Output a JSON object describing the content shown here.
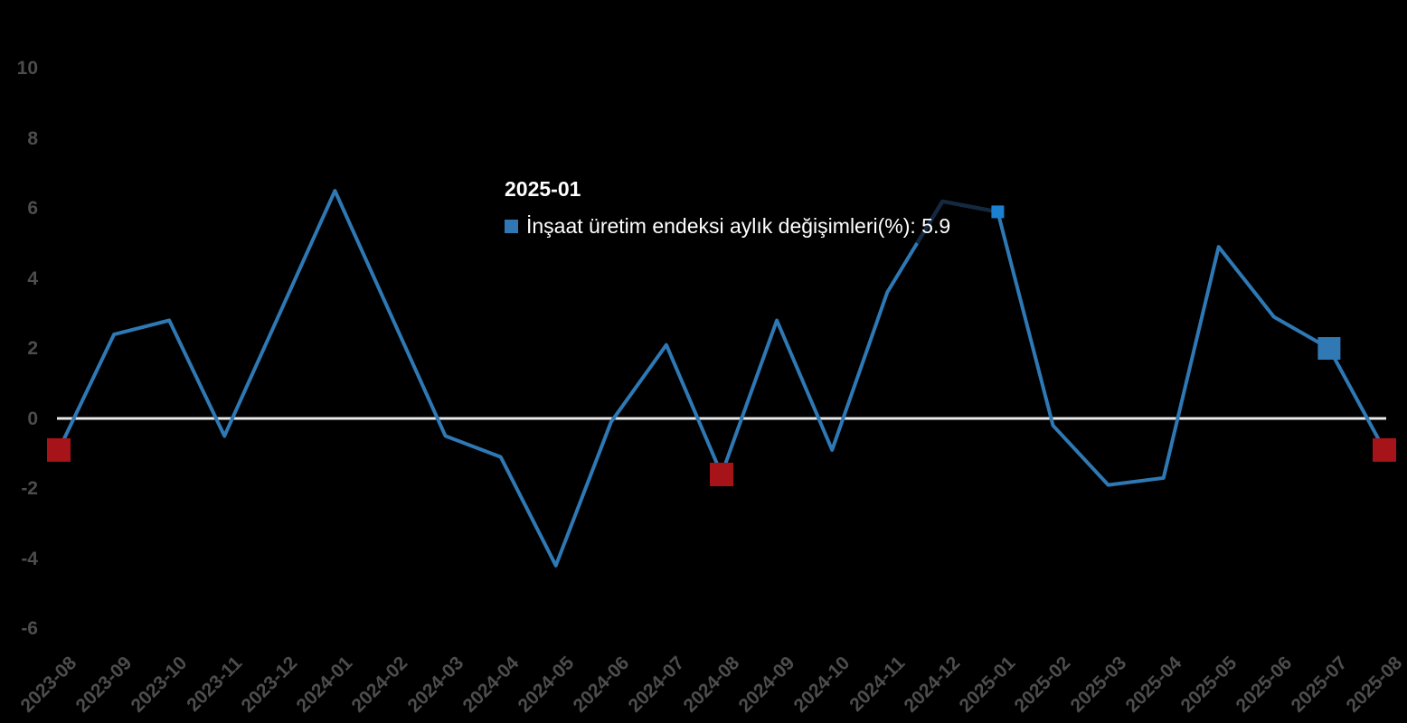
{
  "chart_data": {
    "type": "line",
    "title": "",
    "xlabel": "",
    "ylabel": "",
    "background_color": "#000000",
    "axis_label_color": "#4d4d4d",
    "grid": "zero-line-only",
    "zero_line_color": "#e9e9e9",
    "ylim": [
      -6.5,
      10.5
    ],
    "yticks": [
      10,
      8,
      6,
      4,
      2,
      0,
      -2,
      -4,
      -6
    ],
    "categories": [
      "2023-08",
      "2023-09",
      "2023-10",
      "2023-11",
      "2023-12",
      "2024-01",
      "2024-02",
      "2024-03",
      "2024-04",
      "2024-05",
      "2024-06",
      "2024-07",
      "2024-08",
      "2024-09",
      "2024-10",
      "2024-11",
      "2024-12",
      "2025-01",
      "2025-02",
      "2025-03",
      "2025-04",
      "2025-05",
      "2025-06",
      "2025-07",
      "2025-08"
    ],
    "series": [
      {
        "name": "İnşaat üretim endeksi aylık değişimleri(%)",
        "color": "#2e79b5",
        "line_width": 4,
        "values": [
          -0.9,
          2.4,
          2.8,
          -0.5,
          3.0,
          6.5,
          3.0,
          -0.5,
          -1.1,
          -4.2,
          -0.1,
          2.1,
          -1.6,
          2.8,
          -0.9,
          3.6,
          6.2,
          5.9,
          -0.2,
          -1.9,
          -1.7,
          4.9,
          2.9,
          2.0,
          -0.9
        ]
      }
    ],
    "markers": [
      {
        "category": "2023-08",
        "index": 0,
        "shape": "square",
        "color": "#a61419",
        "size": 26
      },
      {
        "category": "2024-08",
        "index": 12,
        "shape": "square",
        "color": "#a61419",
        "size": 26
      },
      {
        "category": "2025-08",
        "index": 24,
        "shape": "square",
        "color": "#a61419",
        "size": 26
      },
      {
        "category": "2025-07",
        "index": 23,
        "shape": "square",
        "color": "#3179b5",
        "size": 25
      },
      {
        "category": "2025-01",
        "index": 17,
        "shape": "square",
        "color": "#1b80d2",
        "size": 14
      }
    ],
    "hover_dim_segment": {
      "start_index": 15.54,
      "end_index": 17,
      "color": "#142840",
      "line_width": 4
    },
    "tooltip": {
      "header": "2025-01",
      "legend_color": "#3077b4",
      "series_label": "İnşaat üretim endeksi aylık değişimleri(%)",
      "value": "5.9",
      "text": "İnşaat üretim endeksi aylık değişimleri(%): 5.9"
    },
    "legend_position": "tooltip-only"
  }
}
